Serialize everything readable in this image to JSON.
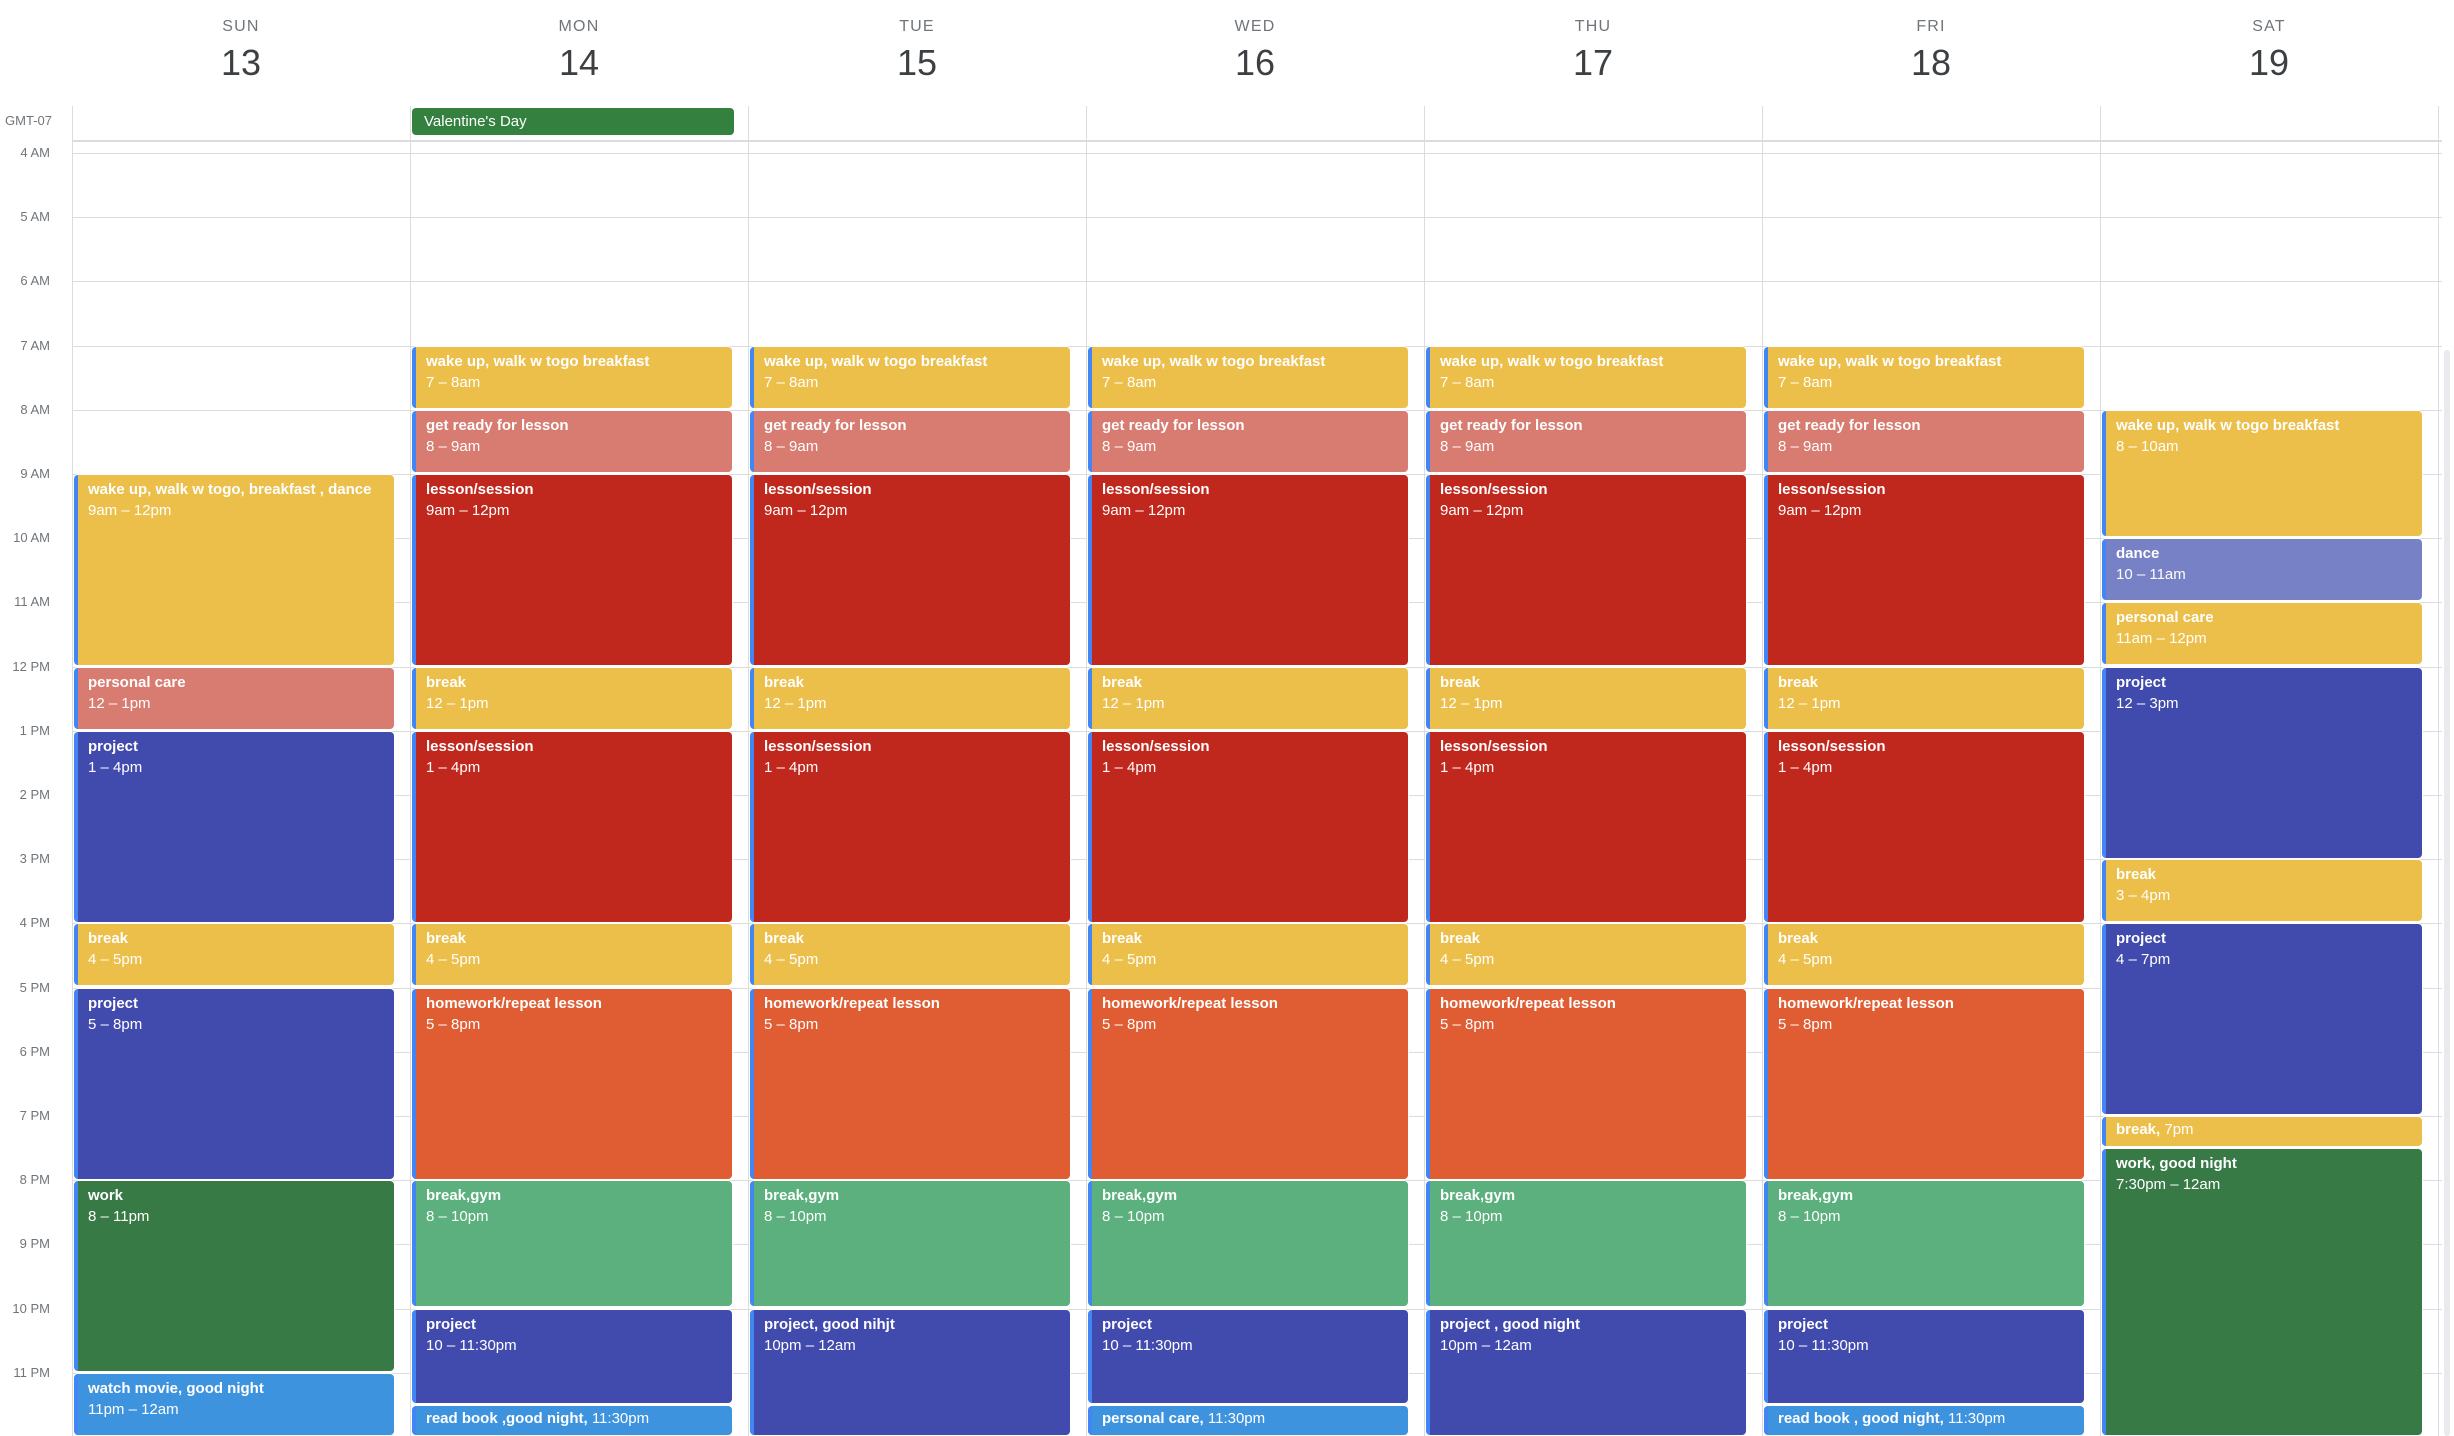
{
  "timezone": "GMT-07",
  "days": [
    {
      "dow": "SUN",
      "date": "13"
    },
    {
      "dow": "MON",
      "date": "14"
    },
    {
      "dow": "TUE",
      "date": "15"
    },
    {
      "dow": "WED",
      "date": "16"
    },
    {
      "dow": "THU",
      "date": "17"
    },
    {
      "dow": "FRI",
      "date": "18"
    },
    {
      "dow": "SAT",
      "date": "19"
    }
  ],
  "hours": [
    "4 AM",
    "5 AM",
    "6 AM",
    "7 AM",
    "8 AM",
    "9 AM",
    "10 AM",
    "11 AM",
    "12 PM",
    "1 PM",
    "2 PM",
    "3 PM",
    "4 PM",
    "5 PM",
    "6 PM",
    "7 PM",
    "8 PM",
    "9 PM",
    "10 PM",
    "11 PM"
  ],
  "allday": [
    {
      "day": 1,
      "title": "Valentine's Day",
      "color": "#33803f"
    }
  ],
  "colors": {
    "banana": "#ecbf4b",
    "flamingo": "#d87b70",
    "tomato": "#c0271d",
    "blueberry": "#414bad",
    "tangerine": "#e05c33",
    "sage": "#5bb07d",
    "basil": "#377a45",
    "peacock": "#3e93de",
    "lavender": "#7781c5",
    "accent": "#4285f4"
  },
  "events": [
    {
      "day": 0,
      "start": 9,
      "end": 12,
      "title": "wake up, walk w togo, breakfast , dance",
      "time": "9am – 12pm",
      "color": "banana",
      "accent": true
    },
    {
      "day": 0,
      "start": 12,
      "end": 13,
      "title": "personal care",
      "time": "12 – 1pm",
      "color": "flamingo",
      "accent": true
    },
    {
      "day": 0,
      "start": 13,
      "end": 16,
      "title": "project",
      "time": "1 – 4pm",
      "color": "blueberry",
      "accent": true
    },
    {
      "day": 0,
      "start": 16,
      "end": 17,
      "title": "break",
      "time": "4 – 5pm",
      "color": "banana",
      "accent": true
    },
    {
      "day": 0,
      "start": 17,
      "end": 20,
      "title": "project",
      "time": "5 – 8pm",
      "color": "blueberry",
      "accent": true
    },
    {
      "day": 0,
      "start": 20,
      "end": 23,
      "title": "work",
      "time": "8 – 11pm",
      "color": "basil",
      "accent": true
    },
    {
      "day": 0,
      "start": 23,
      "end": 24,
      "title": "watch movie, good night",
      "time": "11pm – 12am",
      "color": "peacock",
      "accent": true
    },
    {
      "day": 1,
      "start": 7,
      "end": 8,
      "title": "wake up, walk w togo breakfast",
      "time": "7 – 8am",
      "color": "banana",
      "accent": true
    },
    {
      "day": 1,
      "start": 8,
      "end": 9,
      "title": "get ready for lesson",
      "time": "8 – 9am",
      "color": "flamingo",
      "accent": true
    },
    {
      "day": 1,
      "start": 9,
      "end": 12,
      "title": "lesson/session",
      "time": "9am – 12pm",
      "color": "tomato",
      "accent": true
    },
    {
      "day": 1,
      "start": 12,
      "end": 13,
      "title": "break",
      "time": "12 – 1pm",
      "color": "banana",
      "accent": true
    },
    {
      "day": 1,
      "start": 13,
      "end": 16,
      "title": "lesson/session",
      "time": "1 – 4pm",
      "color": "tomato",
      "accent": true
    },
    {
      "day": 1,
      "start": 16,
      "end": 17,
      "title": "break",
      "time": "4 – 5pm",
      "color": "banana",
      "accent": true
    },
    {
      "day": 1,
      "start": 17,
      "end": 20,
      "title": "homework/repeat lesson",
      "time": "5 – 8pm",
      "color": "tangerine",
      "accent": true
    },
    {
      "day": 1,
      "start": 20,
      "end": 22,
      "title": "break,gym",
      "time": "8 – 10pm",
      "color": "sage",
      "accent": true
    },
    {
      "day": 1,
      "start": 22,
      "end": 23.5,
      "title": "project",
      "time": "10 – 11:30pm",
      "color": "blueberry",
      "accent": true
    },
    {
      "day": 1,
      "start": 23.5,
      "end": 24,
      "title": "read book ,good night,",
      "time": "11:30pm",
      "color": "peacock",
      "accent": true,
      "inline": true
    },
    {
      "day": 2,
      "start": 7,
      "end": 8,
      "title": "wake up, walk w togo breakfast",
      "time": "7 – 8am",
      "color": "banana",
      "accent": true
    },
    {
      "day": 2,
      "start": 8,
      "end": 9,
      "title": "get ready for lesson",
      "time": "8 – 9am",
      "color": "flamingo",
      "accent": true
    },
    {
      "day": 2,
      "start": 9,
      "end": 12,
      "title": "lesson/session",
      "time": "9am – 12pm",
      "color": "tomato",
      "accent": true
    },
    {
      "day": 2,
      "start": 12,
      "end": 13,
      "title": "break",
      "time": "12 – 1pm",
      "color": "banana",
      "accent": true
    },
    {
      "day": 2,
      "start": 13,
      "end": 16,
      "title": "lesson/session",
      "time": "1 – 4pm",
      "color": "tomato",
      "accent": true
    },
    {
      "day": 2,
      "start": 16,
      "end": 17,
      "title": "break",
      "time": "4 – 5pm",
      "color": "banana",
      "accent": true
    },
    {
      "day": 2,
      "start": 17,
      "end": 20,
      "title": "homework/repeat lesson",
      "time": "5 – 8pm",
      "color": "tangerine",
      "accent": true
    },
    {
      "day": 2,
      "start": 20,
      "end": 22,
      "title": "break,gym",
      "time": "8 – 10pm",
      "color": "sage",
      "accent": true
    },
    {
      "day": 2,
      "start": 22,
      "end": 24,
      "title": "project, good nihjt",
      "time": "10pm – 12am",
      "color": "blueberry",
      "accent": true
    },
    {
      "day": 3,
      "start": 7,
      "end": 8,
      "title": "wake up, walk w togo breakfast",
      "time": "7 – 8am",
      "color": "banana",
      "accent": true
    },
    {
      "day": 3,
      "start": 8,
      "end": 9,
      "title": "get ready for lesson",
      "time": "8 – 9am",
      "color": "flamingo",
      "accent": true
    },
    {
      "day": 3,
      "start": 9,
      "end": 12,
      "title": "lesson/session",
      "time": "9am – 12pm",
      "color": "tomato",
      "accent": true
    },
    {
      "day": 3,
      "start": 12,
      "end": 13,
      "title": "break",
      "time": "12 – 1pm",
      "color": "banana",
      "accent": true
    },
    {
      "day": 3,
      "start": 13,
      "end": 16,
      "title": "lesson/session",
      "time": "1 – 4pm",
      "color": "tomato",
      "accent": true
    },
    {
      "day": 3,
      "start": 16,
      "end": 17,
      "title": "break",
      "time": "4 – 5pm",
      "color": "banana",
      "accent": true
    },
    {
      "day": 3,
      "start": 17,
      "end": 20,
      "title": "homework/repeat lesson",
      "time": "5 – 8pm",
      "color": "tangerine",
      "accent": true
    },
    {
      "day": 3,
      "start": 20,
      "end": 22,
      "title": "break,gym",
      "time": "8 – 10pm",
      "color": "sage",
      "accent": true
    },
    {
      "day": 3,
      "start": 22,
      "end": 23.5,
      "title": "project",
      "time": "10 – 11:30pm",
      "color": "blueberry",
      "accent": true
    },
    {
      "day": 3,
      "start": 23.5,
      "end": 24,
      "title": "personal care,",
      "time": "11:30pm",
      "color": "peacock",
      "accent": true,
      "inline": true
    },
    {
      "day": 4,
      "start": 7,
      "end": 8,
      "title": "wake up, walk w togo breakfast",
      "time": "7 – 8am",
      "color": "banana",
      "accent": true
    },
    {
      "day": 4,
      "start": 8,
      "end": 9,
      "title": "get ready for lesson",
      "time": "8 – 9am",
      "color": "flamingo",
      "accent": true
    },
    {
      "day": 4,
      "start": 9,
      "end": 12,
      "title": "lesson/session",
      "time": "9am – 12pm",
      "color": "tomato",
      "accent": true
    },
    {
      "day": 4,
      "start": 12,
      "end": 13,
      "title": "break",
      "time": "12 – 1pm",
      "color": "banana",
      "accent": true
    },
    {
      "day": 4,
      "start": 13,
      "end": 16,
      "title": "lesson/session",
      "time": "1 – 4pm",
      "color": "tomato",
      "accent": true
    },
    {
      "day": 4,
      "start": 16,
      "end": 17,
      "title": "break",
      "time": "4 – 5pm",
      "color": "banana",
      "accent": true
    },
    {
      "day": 4,
      "start": 17,
      "end": 20,
      "title": "homework/repeat lesson",
      "time": "5 – 8pm",
      "color": "tangerine",
      "accent": true
    },
    {
      "day": 4,
      "start": 20,
      "end": 22,
      "title": "break,gym",
      "time": "8 – 10pm",
      "color": "sage",
      "accent": true
    },
    {
      "day": 4,
      "start": 22,
      "end": 24,
      "title": "project , good night",
      "time": "10pm – 12am",
      "color": "blueberry",
      "accent": true
    },
    {
      "day": 5,
      "start": 7,
      "end": 8,
      "title": "wake up, walk w togo breakfast",
      "time": "7 – 8am",
      "color": "banana",
      "accent": true
    },
    {
      "day": 5,
      "start": 8,
      "end": 9,
      "title": "get ready for lesson",
      "time": "8 – 9am",
      "color": "flamingo",
      "accent": true
    },
    {
      "day": 5,
      "start": 9,
      "end": 12,
      "title": "lesson/session",
      "time": "9am – 12pm",
      "color": "tomato",
      "accent": true
    },
    {
      "day": 5,
      "start": 12,
      "end": 13,
      "title": "break",
      "time": "12 – 1pm",
      "color": "banana",
      "accent": true
    },
    {
      "day": 5,
      "start": 13,
      "end": 16,
      "title": "lesson/session",
      "time": "1 – 4pm",
      "color": "tomato",
      "accent": true
    },
    {
      "day": 5,
      "start": 16,
      "end": 17,
      "title": "break",
      "time": "4 – 5pm",
      "color": "banana",
      "accent": true
    },
    {
      "day": 5,
      "start": 17,
      "end": 20,
      "title": "homework/repeat lesson",
      "time": "5 – 8pm",
      "color": "tangerine",
      "accent": true
    },
    {
      "day": 5,
      "start": 20,
      "end": 22,
      "title": "break,gym",
      "time": "8 – 10pm",
      "color": "sage",
      "accent": true
    },
    {
      "day": 5,
      "start": 22,
      "end": 23.5,
      "title": "project",
      "time": "10 – 11:30pm",
      "color": "blueberry",
      "accent": true
    },
    {
      "day": 5,
      "start": 23.5,
      "end": 24,
      "title": "read book , good night,",
      "time": "11:30pm",
      "color": "peacock",
      "accent": true,
      "inline": true
    },
    {
      "day": 6,
      "start": 8,
      "end": 10,
      "title": "wake up, walk w togo breakfast",
      "time": "8 – 10am",
      "color": "banana",
      "accent": true
    },
    {
      "day": 6,
      "start": 10,
      "end": 11,
      "title": "dance",
      "time": "10 – 11am",
      "color": "lavender",
      "accent": true
    },
    {
      "day": 6,
      "start": 11,
      "end": 12,
      "title": "personal care",
      "time": "11am – 12pm",
      "color": "banana",
      "accent": true
    },
    {
      "day": 6,
      "start": 12,
      "end": 15,
      "title": "project",
      "time": "12 – 3pm",
      "color": "blueberry",
      "accent": true
    },
    {
      "day": 6,
      "start": 15,
      "end": 16,
      "title": "break",
      "time": "3 – 4pm",
      "color": "banana",
      "accent": true
    },
    {
      "day": 6,
      "start": 16,
      "end": 19,
      "title": "project",
      "time": "4 – 7pm",
      "color": "blueberry",
      "accent": true
    },
    {
      "day": 6,
      "start": 19,
      "end": 19.5,
      "title": "break,",
      "time": "7pm",
      "color": "banana",
      "accent": true,
      "inline": true
    },
    {
      "day": 6,
      "start": 19.5,
      "end": 24,
      "title": "work, good night",
      "time": "7:30pm – 12am",
      "color": "basil",
      "accent": true
    }
  ]
}
